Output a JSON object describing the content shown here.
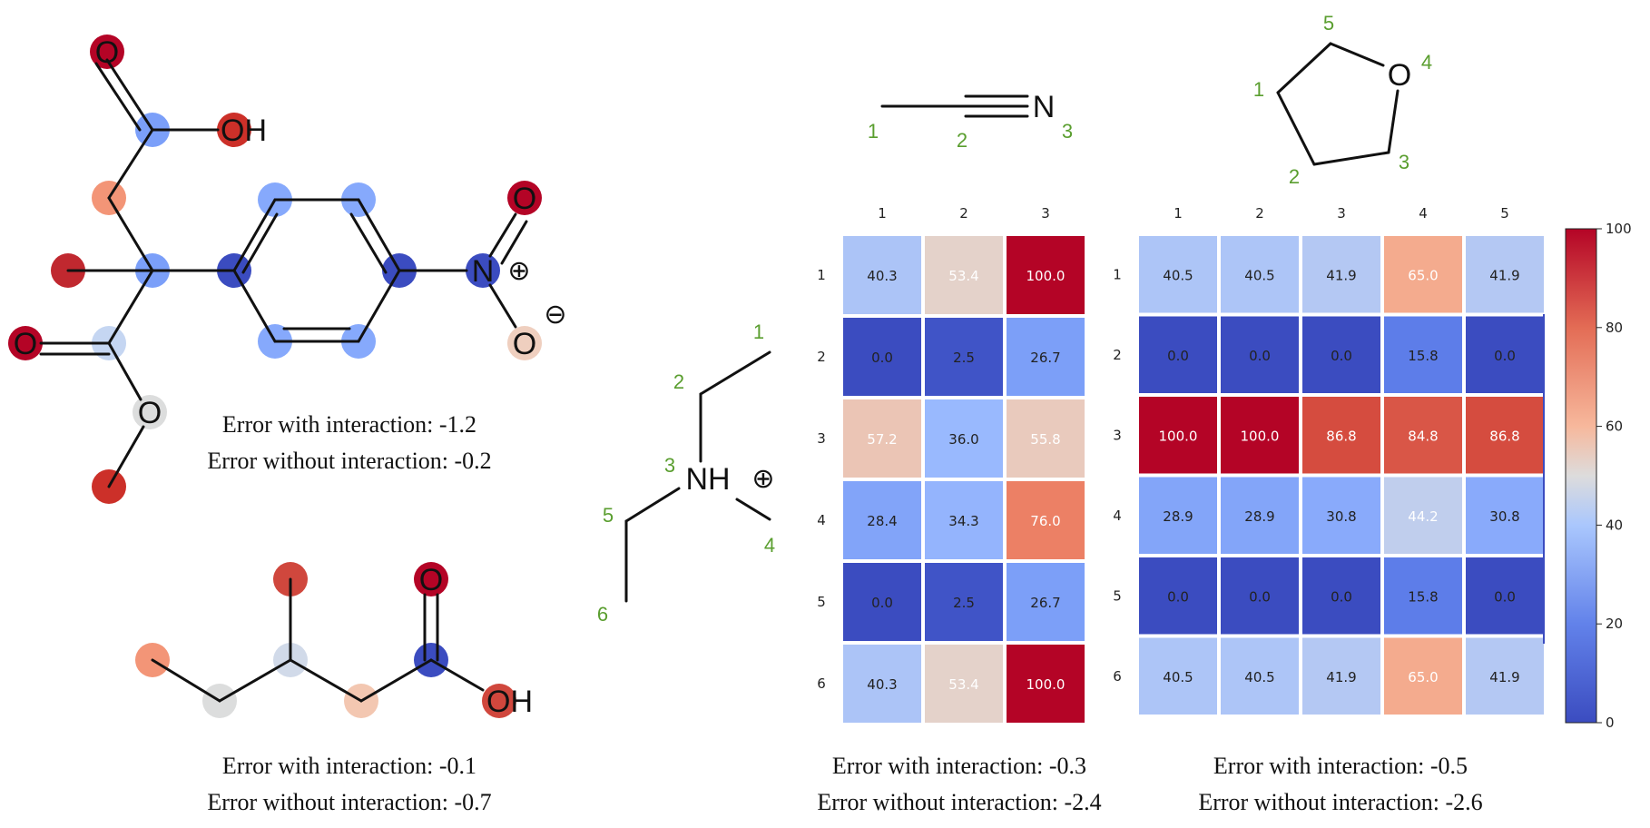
{
  "colors": {
    "min": "#3b4cc0",
    "mid": "#dddddd",
    "max": "#b40426",
    "label": "#5a9e2f"
  },
  "molecules": {
    "m1": {
      "labels": {
        "o_top": "O",
        "oh": "OH",
        "o_left": "O",
        "o_ester": "O",
        "n": "N",
        "o_n_top": "O",
        "o_n_bot": "O",
        "plus": "⊕",
        "minus": "⊖"
      },
      "caption": [
        "Error with interaction: -1.2",
        "Error without interaction: -0.2"
      ]
    },
    "m2": {
      "labels": {
        "o": "O",
        "oh": "OH"
      },
      "caption": [
        "Error with interaction: -0.1",
        "Error without interaction: -0.7"
      ]
    },
    "m3": {
      "labels": {
        "nh": "NH",
        "plus": "⊕"
      },
      "numbers": [
        "1",
        "2",
        "3",
        "4",
        "5",
        "6"
      ]
    },
    "m4": {
      "labels": {
        "n": "N"
      },
      "numbers": [
        "1",
        "2",
        "3"
      ]
    },
    "m5": {
      "labels": {
        "o": "O"
      },
      "numbers": [
        "1",
        "2",
        "3",
        "4",
        "5"
      ]
    }
  },
  "chart_data": [
    {
      "type": "heatmap",
      "x_labels": [
        "1",
        "2",
        "3"
      ],
      "y_labels": [
        "1",
        "2",
        "3",
        "4",
        "5",
        "6"
      ],
      "values": [
        [
          40.3,
          53.4,
          100.0
        ],
        [
          0.0,
          2.5,
          26.7
        ],
        [
          57.2,
          36.0,
          55.8
        ],
        [
          28.4,
          34.3,
          76.0
        ],
        [
          0.0,
          2.5,
          26.7
        ],
        [
          40.3,
          53.4,
          100.0
        ]
      ],
      "caption": [
        "Error with interaction: -0.3",
        "Error without interaction: -2.4"
      ]
    },
    {
      "type": "heatmap",
      "x_labels": [
        "1",
        "2",
        "3",
        "4",
        "5"
      ],
      "y_labels": [
        "1",
        "2",
        "3",
        "4",
        "5",
        "6"
      ],
      "values": [
        [
          40.5,
          40.5,
          41.9,
          65.0,
          41.9
        ],
        [
          0.0,
          0.0,
          0.0,
          15.8,
          0.0
        ],
        [
          100.0,
          100.0,
          86.8,
          84.8,
          86.8
        ],
        [
          28.9,
          28.9,
          30.8,
          44.2,
          30.8
        ],
        [
          0.0,
          0.0,
          0.0,
          15.8,
          0.0
        ],
        [
          40.5,
          40.5,
          41.9,
          65.0,
          41.9
        ]
      ],
      "caption": [
        "Error with interaction: -0.5",
        "Error without interaction: -2.6"
      ]
    },
    {
      "type": "colorbar",
      "colormap": "coolwarm",
      "range": [
        0,
        100
      ],
      "ticks": [
        "0",
        "20",
        "40",
        "60",
        "80",
        "100"
      ]
    }
  ]
}
